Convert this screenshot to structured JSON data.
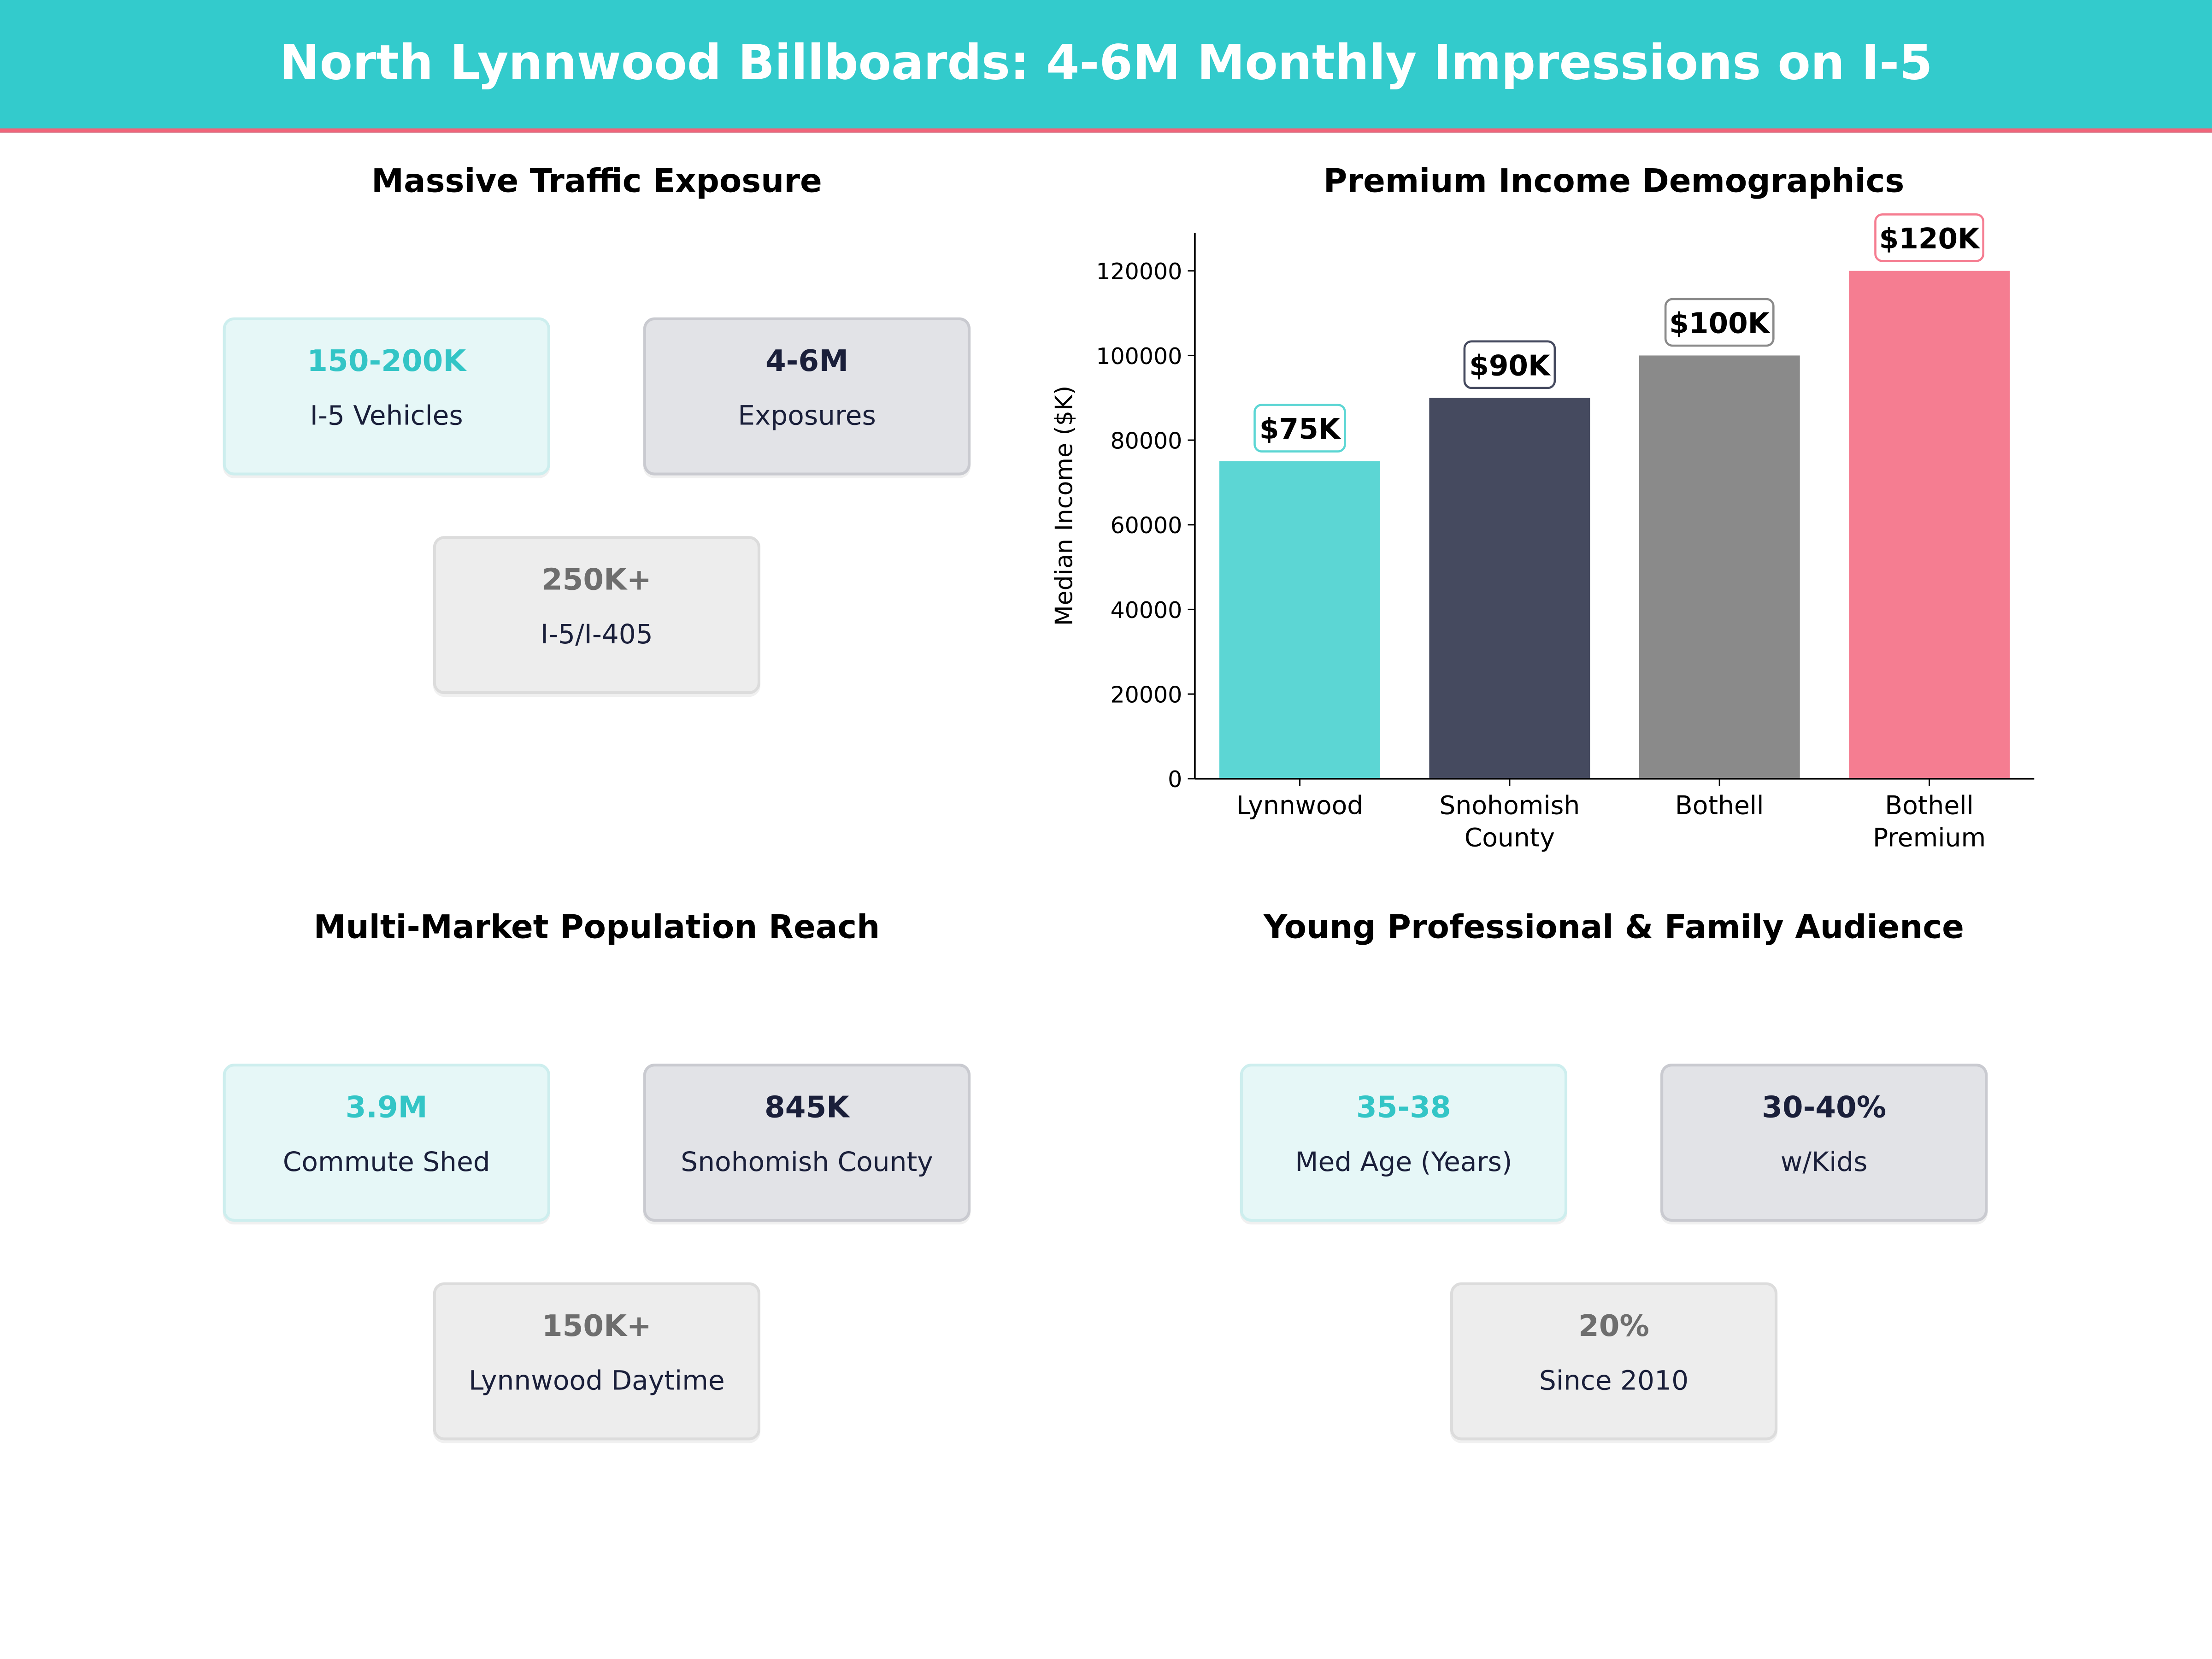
{
  "header": {
    "title": "North Lynnwood Billboards: 4-6M Monthly Impressions on I-5"
  },
  "colors": {
    "teal": "#33cbcc",
    "navy": "#454a5f",
    "gray": "#8a8a8a",
    "pink": "#f57d91",
    "accent_line": "#f0657a"
  },
  "panels": {
    "traffic": {
      "title": "Massive Traffic Exposure",
      "cards": [
        {
          "value": "150-200K",
          "label": "I-5 Vehicles"
        },
        {
          "value": "4-6M",
          "label": "Exposures"
        },
        {
          "value": "250K+",
          "label": "I-5/I-405"
        }
      ]
    },
    "population": {
      "title": "Multi-Market Population Reach",
      "cards": [
        {
          "value": "3.9M",
          "label": "Commute Shed"
        },
        {
          "value": "845K",
          "label": "Snohomish County"
        },
        {
          "value": "150K+",
          "label": "Lynnwood Daytime"
        }
      ]
    },
    "audience": {
      "title": "Young Professional & Family Audience",
      "cards": [
        {
          "value": "35-38",
          "label": "Med Age (Years)"
        },
        {
          "value": "30-40%",
          "label": "w/Kids"
        },
        {
          "value": "20%",
          "label": "Since 2010"
        }
      ]
    }
  },
  "chart_data": {
    "type": "bar",
    "title": "Premium Income Demographics",
    "xlabel": "",
    "ylabel": "Median Income ($K)",
    "categories": [
      [
        "Lynnwood"
      ],
      [
        "Snohomish",
        "County"
      ],
      [
        "Bothell"
      ],
      [
        "Bothell",
        "Premium"
      ]
    ],
    "values": [
      75000,
      90000,
      100000,
      120000
    ],
    "data_labels": [
      "$75K",
      "$90K",
      "$100K",
      "$120K"
    ],
    "bar_colors": [
      "#5cd6d4",
      "#454a5f",
      "#8a8a8a",
      "#f57d91"
    ],
    "label_border_colors": [
      "#5cd6d4",
      "#454a5f",
      "#8a8a8a",
      "#f57d91"
    ],
    "yticks": [
      0,
      20000,
      40000,
      60000,
      80000,
      100000,
      120000
    ],
    "ylim": [
      0,
      129000
    ],
    "grid": false
  }
}
